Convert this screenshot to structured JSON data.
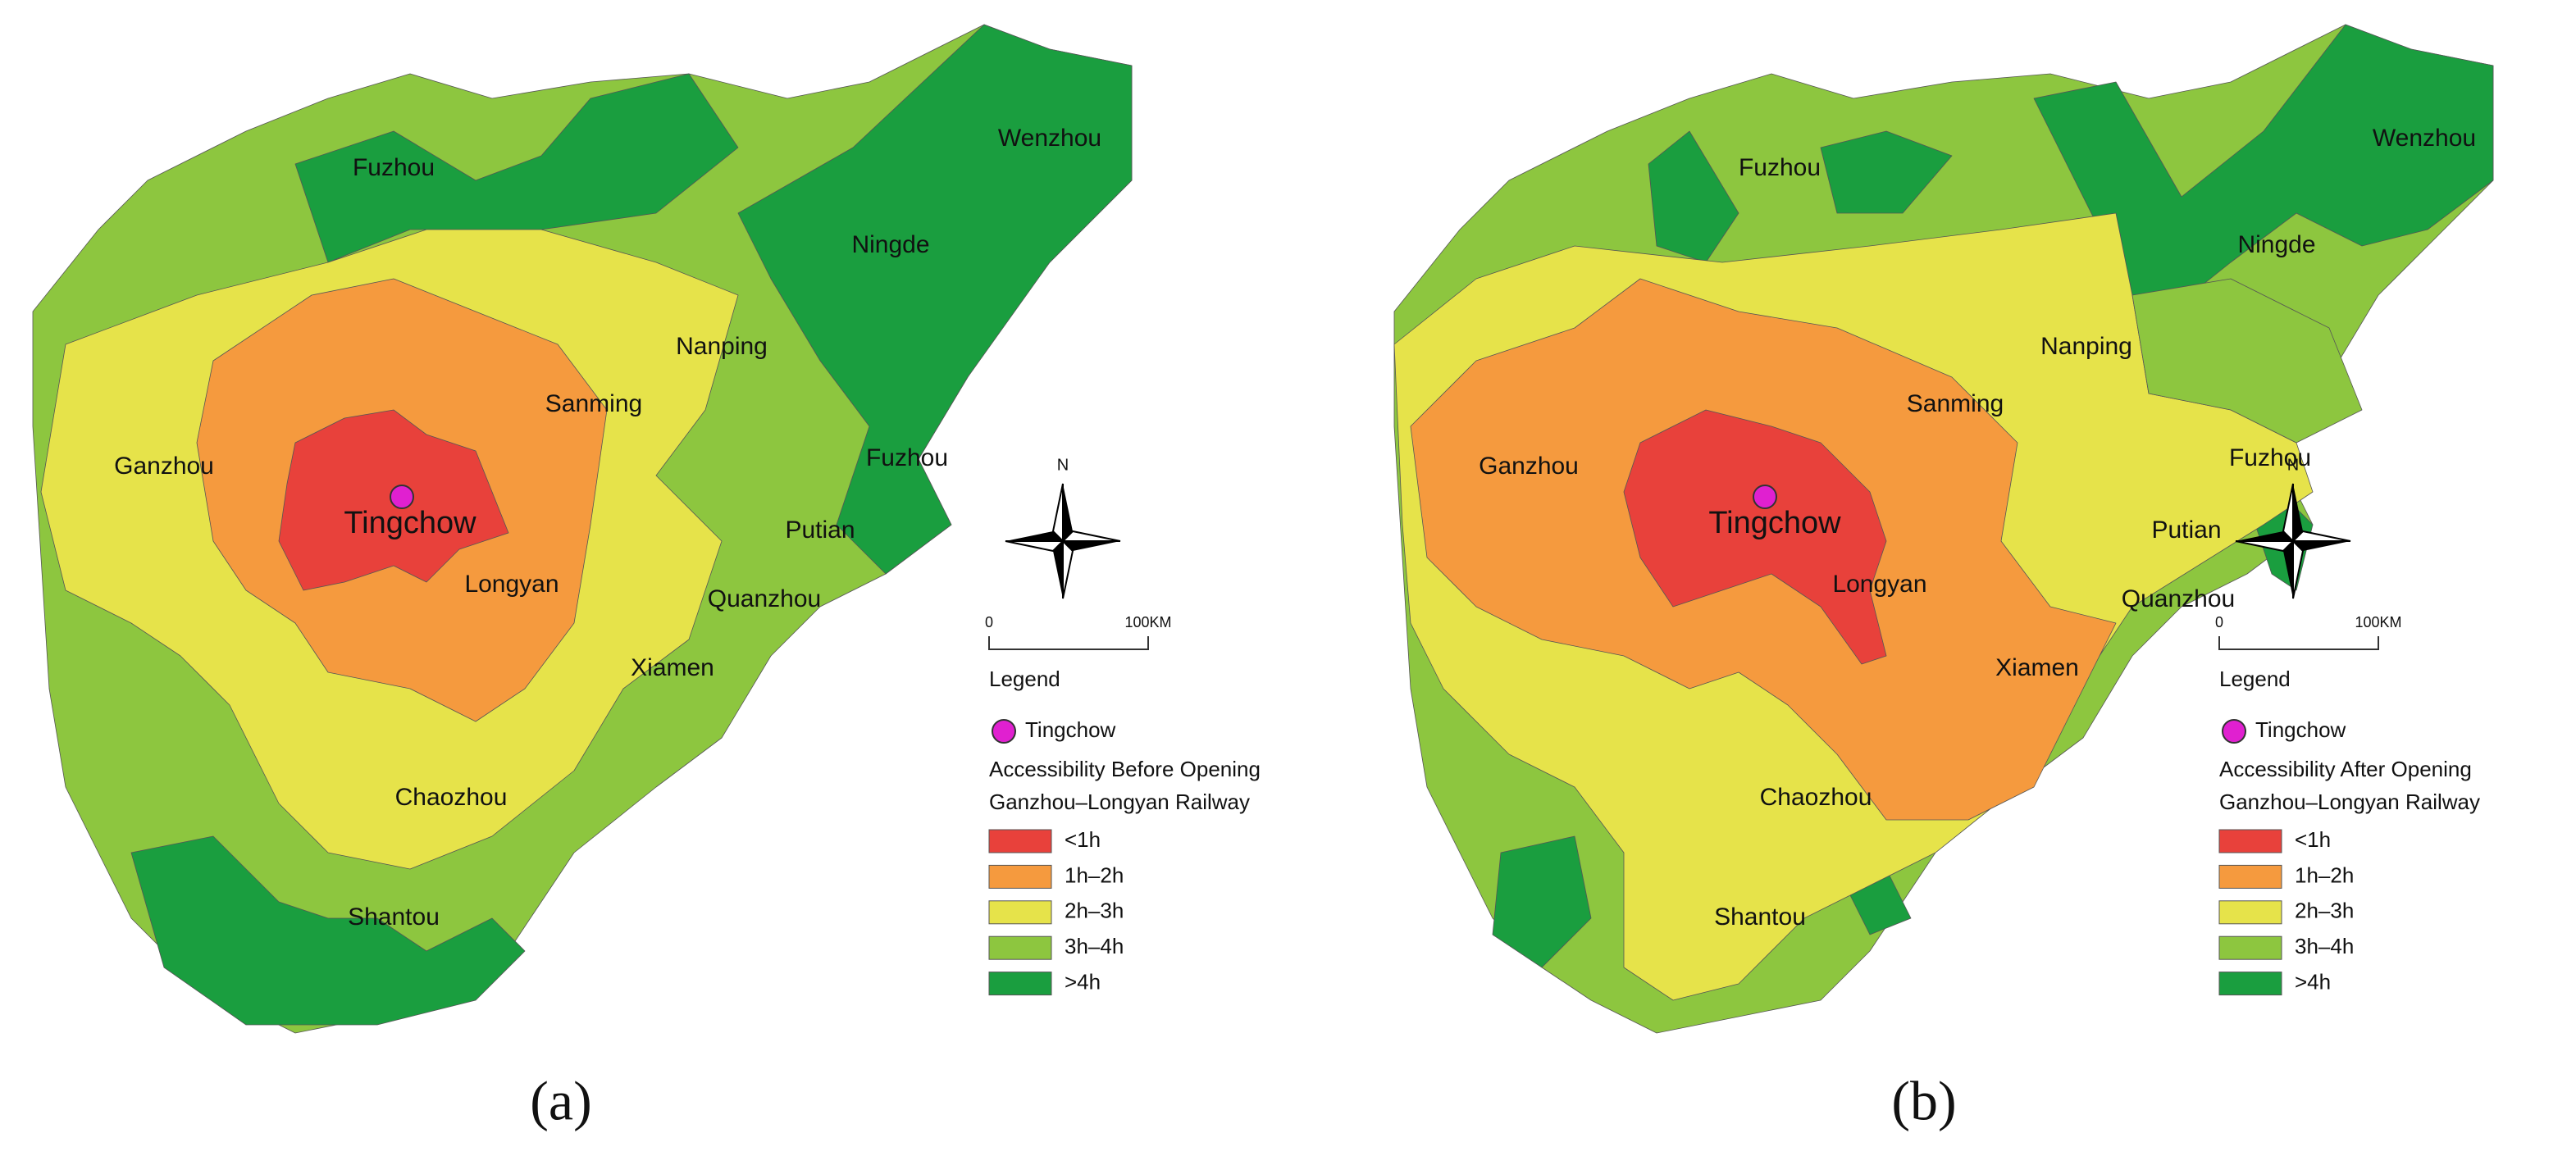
{
  "classes": [
    {
      "label": "<1h",
      "color": "#e8413b"
    },
    {
      "label": "1h–2h",
      "color": "#f59a3e"
    },
    {
      "label": "2h–3h",
      "color": "#e6e34a"
    },
    {
      "label": "3h–4h",
      "color": "#8dc63f"
    },
    {
      "label": ">4h",
      "color": "#1a9e3f"
    }
  ],
  "panels": [
    {
      "label": "(a)",
      "cities": [
        "Fuzhou",
        "Wenzhou",
        "Ningde",
        "Nanping",
        "Sanming",
        "Ganzhou",
        "Fuzhou",
        "Tingchow",
        "Putian",
        "Longyan",
        "Quanzhou",
        "Xiamen",
        "Chaozhou",
        "Shantou"
      ],
      "north": "N",
      "scale": [
        "0",
        "100KM"
      ],
      "legend": {
        "title": "Legend",
        "marker": "Tingchow",
        "heading": [
          "Accessibility Before Opening",
          "Ganzhou–Longyan Railway"
        ]
      }
    },
    {
      "label": "(b)",
      "cities": [
        "Fuzhou",
        "Wenzhou",
        "Ningde",
        "Nanping",
        "Sanming",
        "Ganzhou",
        "Fuzhou",
        "Tingchow",
        "Putian",
        "Longyan",
        "Quanzhou",
        "Xiamen",
        "Chaozhou",
        "Shantou"
      ],
      "north": "N",
      "scale": [
        "0",
        "100KM"
      ],
      "legend": {
        "title": "Legend",
        "marker": "Tingchow",
        "heading": [
          "Accessibility After Opening",
          "Ganzhou–Longyan Railway"
        ]
      }
    }
  ]
}
